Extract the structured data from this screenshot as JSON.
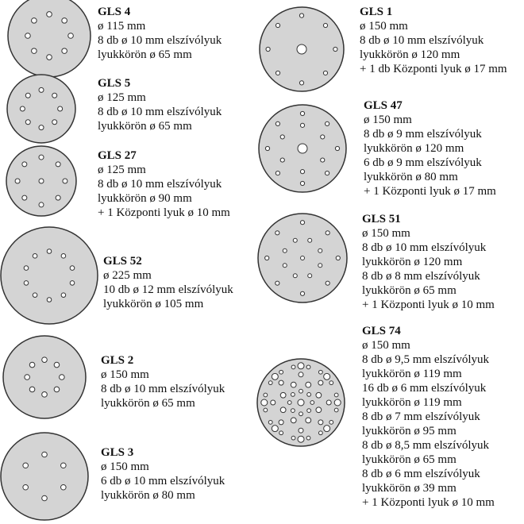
{
  "colors": {
    "disc_fill": "#d4d4d4",
    "disc_stroke": "#333333",
    "hole_fill": "#ffffff"
  },
  "discs": [
    {
      "title": "GLS 4",
      "lines": [
        "ø 115 mm",
        "8 db ø 10 mm elszívólyuk",
        "lyukkörön ø 65 mm"
      ]
    },
    {
      "title": "GLS 5",
      "lines": [
        "ø 125 mm",
        "8 db ø 10 mm elszívólyuk",
        "lyukkörön ø 65 mm"
      ]
    },
    {
      "title": "GLS 27",
      "lines": [
        "ø 125 mm",
        "8 db ø 10 mm elszívólyuk",
        "lyukkörön ø 90 mm",
        "+ 1 Központi lyuk ø 10 mm"
      ]
    },
    {
      "title": "GLS 52",
      "lines": [
        "ø 225 mm",
        "10 db ø 12 mm elszívólyuk",
        "lyukkörön ø 105 mm"
      ]
    },
    {
      "title": "GLS 2",
      "lines": [
        "ø 150 mm",
        "8 db ø 10 mm elszívólyuk",
        "lyukkörön ø 65 mm"
      ]
    },
    {
      "title": "GLS 3",
      "lines": [
        "ø 150 mm",
        "6 db ø 10 mm elszívólyuk",
        "lyukkörön ø 80 mm"
      ]
    },
    {
      "title": "GLS 1",
      "lines": [
        "ø 150 mm",
        "8 db ø 10 mm elszívólyuk",
        "lyukkörön ø 120 mm",
        "+ 1 db Központi lyuk ø 17 mm"
      ]
    },
    {
      "title": "GLS 47",
      "lines": [
        "ø 150 mm",
        "8 db ø 9 mm elszívólyuk",
        "lyukkörön ø 120 mm",
        "6 db ø 9 mm elszívólyuk",
        "lyukkörön ø 80 mm",
        "+ 1 Központi lyuk ø 17 mm"
      ]
    },
    {
      "title": "GLS 51",
      "lines": [
        "ø 150 mm",
        "8 db ø 10 mm elszívólyuk",
        "lyukkörön ø 120 mm",
        "8 db ø 8 mm elszívólyuk",
        "lyukkörön ø 65 mm",
        "+ 1 Központi lyuk ø 10 mm"
      ]
    },
    {
      "title": "GLS 74",
      "lines": [
        "ø 150 mm",
        "8 db ø 9,5 mm elszívólyuk",
        "lyukkörön ø 119 mm",
        "16 db ø 6 mm elszívólyuk",
        "lyukkörön ø 119 mm",
        "8 db ø 7 mm elszívólyuk",
        "lyukkörön ø 95 mm",
        "8 db ø 8,5 mm elszívólyuk",
        "lyukkörön ø 65 mm",
        "8 db ø 6 mm elszívólyuk",
        "lyukkörön ø 39 mm",
        "+ 1 Központi lyuk ø 10 mm"
      ]
    }
  ]
}
